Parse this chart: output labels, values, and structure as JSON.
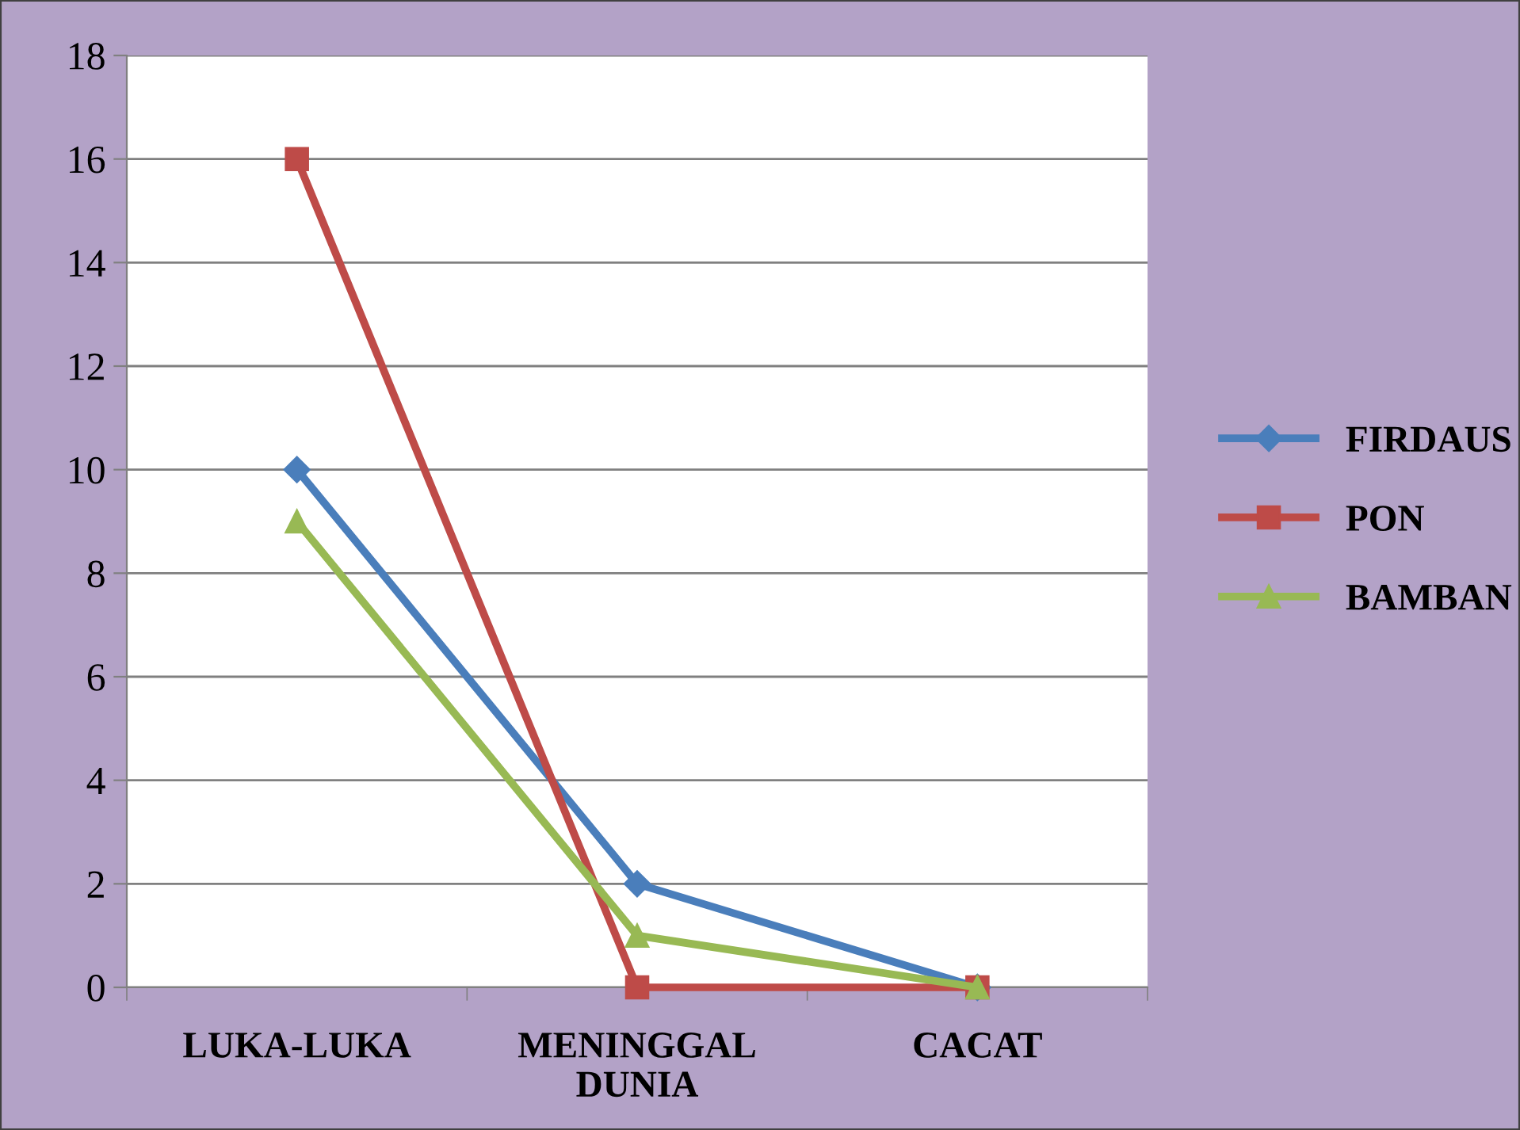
{
  "chart_data": {
    "type": "line",
    "categories": [
      "LUKA-LUKA",
      "MENINGGAL\nDUNIA",
      "CACAT"
    ],
    "series": [
      {
        "name": "FIRDAUS",
        "color": "#4a7ebb",
        "marker": "diamond",
        "values": [
          10,
          2,
          0
        ]
      },
      {
        "name": "PON",
        "color": "#be4b48",
        "marker": "square",
        "values": [
          16,
          0,
          0
        ]
      },
      {
        "name": "BAMBAN",
        "color": "#98b954",
        "marker": "triangle",
        "values": [
          9,
          1,
          0
        ]
      }
    ],
    "ylim": [
      0,
      18
    ],
    "yticks": [
      0,
      2,
      4,
      6,
      8,
      10,
      12,
      14,
      16,
      18
    ],
    "grid": "y",
    "legend": "right",
    "line_style": "solid"
  }
}
